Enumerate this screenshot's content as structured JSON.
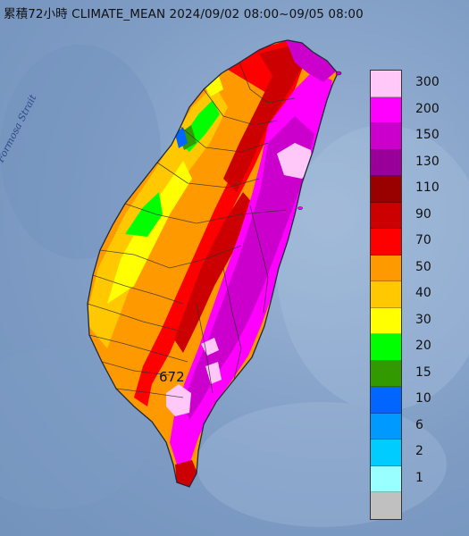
{
  "title": "累積72小時 CLIMATE_MEAN 2024/09/02 08:00~09/05 08:00",
  "strait_label": "Formosa Strait",
  "max_value_label": "672",
  "legend": [
    {
      "label": "300",
      "color": "#ffc8f8"
    },
    {
      "label": "200",
      "color": "#ff00ff"
    },
    {
      "label": "150",
      "color": "#cc00cc"
    },
    {
      "label": "130",
      "color": "#990099"
    },
    {
      "label": "110",
      "color": "#990000"
    },
    {
      "label": "90",
      "color": "#cc0000"
    },
    {
      "label": "70",
      "color": "#ff0000"
    },
    {
      "label": "50",
      "color": "#ff9900"
    },
    {
      "label": "40",
      "color": "#ffc800"
    },
    {
      "label": "30",
      "color": "#ffff00"
    },
    {
      "label": "20",
      "color": "#00ff00"
    },
    {
      "label": "15",
      "color": "#339900"
    },
    {
      "label": "10",
      "color": "#0066ff"
    },
    {
      "label": "6",
      "color": "#0099ff"
    },
    {
      "label": "2",
      "color": "#00ccff"
    },
    {
      "label": "1",
      "color": "#99ffff"
    },
    {
      "label": "",
      "color": "#c0c0c0"
    }
  ]
}
